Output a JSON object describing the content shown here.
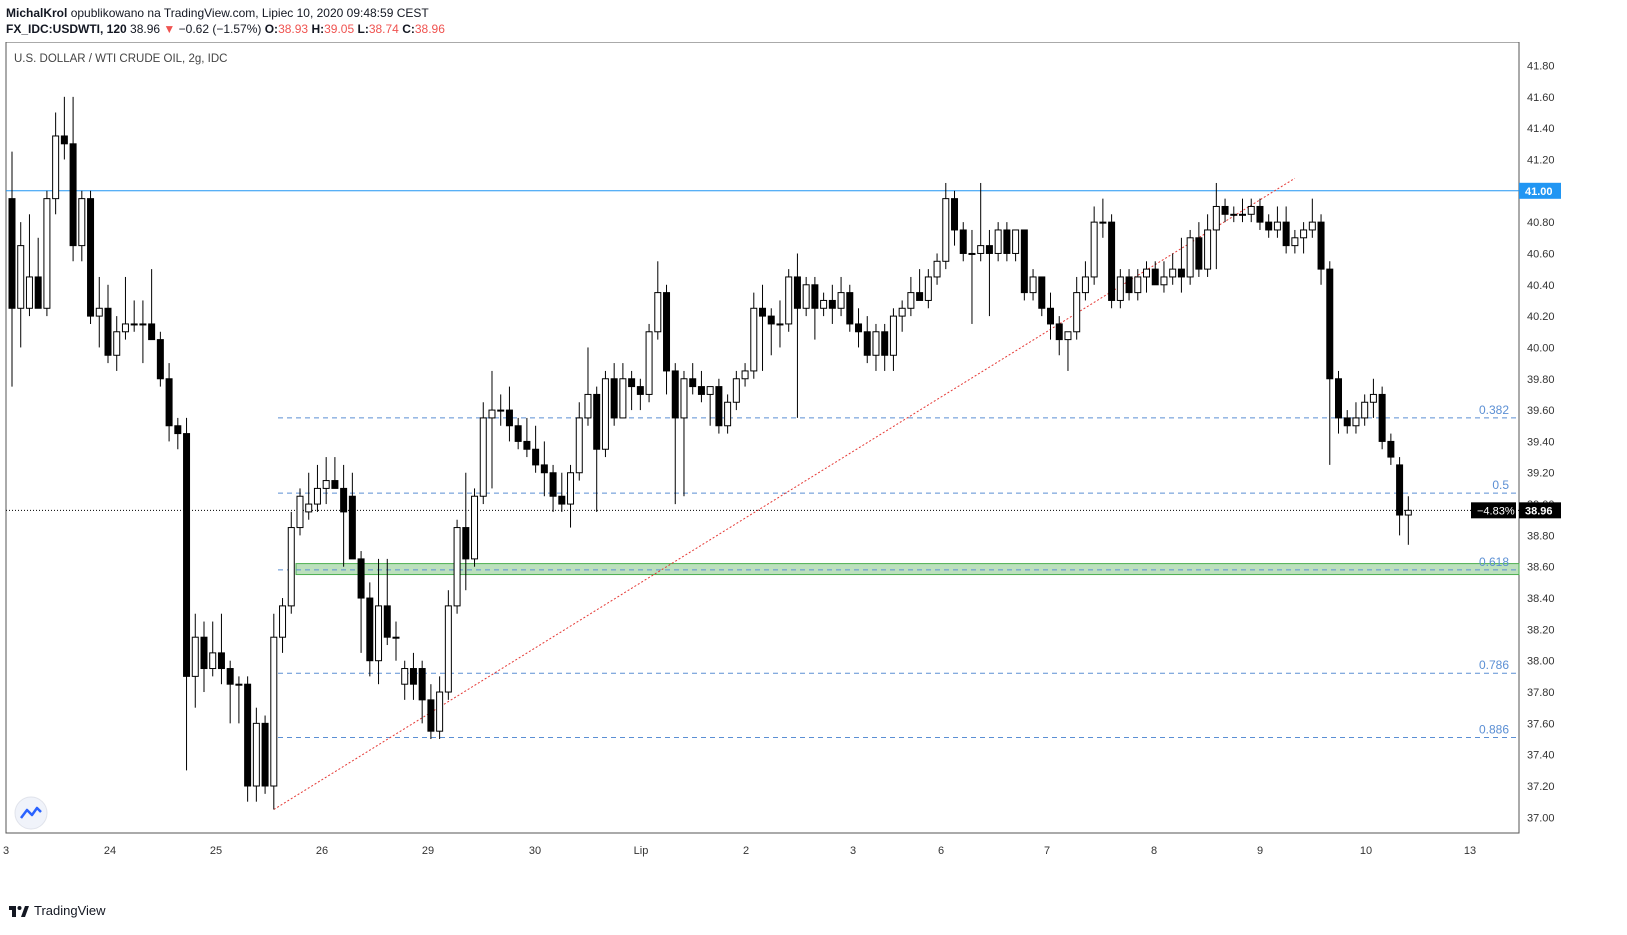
{
  "header": {
    "author": "MichalKrol",
    "published_text": "opublikowano na TradingView.com, Lipiec 10, 2020 09:48:59 CEST",
    "symbol": "FX_IDC:USDWTI, 120",
    "last": "38.96",
    "change_arrow": "▼",
    "change": "−0.62 (−1.57%)",
    "o_label": "O:",
    "o_value": "38.93",
    "h_label": "H:",
    "h_value": "39.05",
    "l_label": "L:",
    "l_value": "38.74",
    "c_label": "C:",
    "c_value": "38.96"
  },
  "chart_title": "U.S. DOLLAR / WTI CRUDE OIL, 2g, IDC",
  "footer": {
    "brand": "TradingView"
  },
  "colors": {
    "up_body": "#ffffff",
    "down_body": "#000000",
    "wick": "#000000",
    "resistance": "#2196f3",
    "fib": "#5b8fd4",
    "trend": "#e53935",
    "zone_fill": "#a5d6a7",
    "zone_border": "#4caf50",
    "price_line": "#000000"
  },
  "chart_data": {
    "type": "candlestick",
    "title": "U.S. DOLLAR / WTI CRUDE OIL, 2g, IDC",
    "ylim": [
      36.9,
      41.95
    ],
    "yticks": [
      "41.80",
      "41.60",
      "41.40",
      "41.20",
      "41.00",
      "40.80",
      "40.60",
      "40.40",
      "40.20",
      "40.00",
      "39.80",
      "39.60",
      "39.40",
      "39.20",
      "39.00",
      "38.80",
      "38.60",
      "38.40",
      "38.20",
      "38.00",
      "37.80",
      "37.60",
      "37.40",
      "37.20",
      "37.00"
    ],
    "xticks": [
      "3",
      "24",
      "25",
      "26",
      "29",
      "30",
      "Lip",
      "2",
      "3",
      "6",
      "7",
      "8",
      "9",
      "10",
      "13"
    ],
    "candles": [
      {
        "o": 40.95,
        "h": 41.25,
        "l": 39.75,
        "c": 40.25
      },
      {
        "o": 40.25,
        "h": 40.8,
        "l": 40.0,
        "c": 40.65
      },
      {
        "o": 40.25,
        "h": 40.85,
        "l": 40.2,
        "c": 40.45
      },
      {
        "o": 40.45,
        "h": 40.7,
        "l": 40.25,
        "c": 40.25
      },
      {
        "o": 40.25,
        "h": 41.0,
        "l": 40.2,
        "c": 40.95
      },
      {
        "o": 40.95,
        "h": 41.5,
        "l": 40.85,
        "c": 41.35
      },
      {
        "o": 41.35,
        "h": 41.6,
        "l": 41.2,
        "c": 41.3
      },
      {
        "o": 41.3,
        "h": 41.6,
        "l": 40.55,
        "c": 40.65
      },
      {
        "o": 40.65,
        "h": 41.0,
        "l": 40.55,
        "c": 40.95
      },
      {
        "o": 40.95,
        "h": 41.0,
        "l": 40.15,
        "c": 40.2
      },
      {
        "o": 40.2,
        "h": 40.45,
        "l": 40.0,
        "c": 40.25
      },
      {
        "o": 40.25,
        "h": 40.4,
        "l": 39.9,
        "c": 39.95
      },
      {
        "o": 39.95,
        "h": 40.2,
        "l": 39.85,
        "c": 40.1
      },
      {
        "o": 40.1,
        "h": 40.45,
        "l": 40.05,
        "c": 40.15
      },
      {
        "o": 40.15,
        "h": 40.3,
        "l": 40.1,
        "c": 40.15
      },
      {
        "o": 40.15,
        "h": 40.3,
        "l": 39.9,
        "c": 40.15
      },
      {
        "o": 40.15,
        "h": 40.5,
        "l": 40.1,
        "c": 40.05
      },
      {
        "o": 40.05,
        "h": 40.1,
        "l": 39.75,
        "c": 39.8
      },
      {
        "o": 39.8,
        "h": 39.9,
        "l": 39.4,
        "c": 39.5
      },
      {
        "o": 39.5,
        "h": 39.55,
        "l": 39.35,
        "c": 39.45
      },
      {
        "o": 39.45,
        "h": 39.55,
        "l": 37.3,
        "c": 37.9
      },
      {
        "o": 37.9,
        "h": 38.3,
        "l": 37.7,
        "c": 38.15
      },
      {
        "o": 38.15,
        "h": 38.25,
        "l": 37.8,
        "c": 37.95
      },
      {
        "o": 37.95,
        "h": 38.25,
        "l": 37.9,
        "c": 38.05
      },
      {
        "o": 38.05,
        "h": 38.3,
        "l": 37.85,
        "c": 37.95
      },
      {
        "o": 37.95,
        "h": 38.0,
        "l": 37.6,
        "c": 37.85
      },
      {
        "o": 37.85,
        "h": 37.9,
        "l": 37.6,
        "c": 37.85
      },
      {
        "o": 37.85,
        "h": 37.9,
        "l": 37.1,
        "c": 37.2
      },
      {
        "o": 37.2,
        "h": 37.7,
        "l": 37.1,
        "c": 37.6
      },
      {
        "o": 37.6,
        "h": 37.65,
        "l": 37.15,
        "c": 37.2
      },
      {
        "o": 37.2,
        "h": 38.3,
        "l": 37.05,
        "c": 38.15
      },
      {
        "o": 38.15,
        "h": 38.4,
        "l": 38.05,
        "c": 38.35
      },
      {
        "o": 38.35,
        "h": 38.95,
        "l": 38.3,
        "c": 38.85
      },
      {
        "o": 38.85,
        "h": 39.1,
        "l": 38.8,
        "c": 39.05
      },
      {
        "o": 38.95,
        "h": 39.2,
        "l": 38.9,
        "c": 39.0
      },
      {
        "o": 39.0,
        "h": 39.25,
        "l": 38.95,
        "c": 39.1
      },
      {
        "o": 39.1,
        "h": 39.3,
        "l": 39.0,
        "c": 39.15
      },
      {
        "o": 39.15,
        "h": 39.3,
        "l": 39.1,
        "c": 39.1
      },
      {
        "o": 39.1,
        "h": 39.25,
        "l": 38.6,
        "c": 38.95
      },
      {
        "o": 39.05,
        "h": 39.2,
        "l": 38.7,
        "c": 38.65
      },
      {
        "o": 38.65,
        "h": 38.7,
        "l": 38.05,
        "c": 38.4
      },
      {
        "o": 38.4,
        "h": 38.5,
        "l": 37.9,
        "c": 38.0
      },
      {
        "o": 38.0,
        "h": 38.65,
        "l": 37.85,
        "c": 38.35
      },
      {
        "o": 38.35,
        "h": 38.65,
        "l": 38.1,
        "c": 38.15
      },
      {
        "o": 38.15,
        "h": 38.25,
        "l": 38.0,
        "c": 38.15
      },
      {
        "o": 37.85,
        "h": 38.0,
        "l": 37.75,
        "c": 37.95
      },
      {
        "o": 37.95,
        "h": 38.05,
        "l": 37.75,
        "c": 37.85
      },
      {
        "o": 37.95,
        "h": 38.0,
        "l": 37.6,
        "c": 37.75
      },
      {
        "o": 37.75,
        "h": 37.85,
        "l": 37.5,
        "c": 37.55
      },
      {
        "o": 37.55,
        "h": 37.9,
        "l": 37.5,
        "c": 37.8
      },
      {
        "o": 37.8,
        "h": 38.45,
        "l": 37.75,
        "c": 38.35
      },
      {
        "o": 38.35,
        "h": 38.9,
        "l": 38.3,
        "c": 38.85
      },
      {
        "o": 38.85,
        "h": 39.2,
        "l": 38.45,
        "c": 38.65
      },
      {
        "o": 38.65,
        "h": 39.1,
        "l": 38.6,
        "c": 39.05
      },
      {
        "o": 39.05,
        "h": 39.65,
        "l": 39.0,
        "c": 39.55
      },
      {
        "o": 39.55,
        "h": 39.85,
        "l": 39.1,
        "c": 39.6
      },
      {
        "o": 39.6,
        "h": 39.7,
        "l": 39.5,
        "c": 39.6
      },
      {
        "o": 39.6,
        "h": 39.75,
        "l": 39.4,
        "c": 39.5
      },
      {
        "o": 39.5,
        "h": 39.55,
        "l": 39.35,
        "c": 39.4
      },
      {
        "o": 39.4,
        "h": 39.55,
        "l": 39.3,
        "c": 39.35
      },
      {
        "o": 39.35,
        "h": 39.5,
        "l": 39.2,
        "c": 39.25
      },
      {
        "o": 39.25,
        "h": 39.4,
        "l": 39.05,
        "c": 39.2
      },
      {
        "o": 39.2,
        "h": 39.25,
        "l": 38.95,
        "c": 39.05
      },
      {
        "o": 39.05,
        "h": 39.2,
        "l": 38.95,
        "c": 39.0
      },
      {
        "o": 39.0,
        "h": 39.25,
        "l": 38.85,
        "c": 39.2
      },
      {
        "o": 39.2,
        "h": 39.65,
        "l": 39.15,
        "c": 39.55
      },
      {
        "o": 39.55,
        "h": 40.0,
        "l": 39.5,
        "c": 39.7
      },
      {
        "o": 39.7,
        "h": 39.75,
        "l": 38.95,
        "c": 39.35
      },
      {
        "o": 39.35,
        "h": 39.85,
        "l": 39.3,
        "c": 39.8
      },
      {
        "o": 39.8,
        "h": 39.9,
        "l": 39.5,
        "c": 39.55
      },
      {
        "o": 39.55,
        "h": 39.9,
        "l": 39.6,
        "c": 39.8
      },
      {
        "o": 39.8,
        "h": 39.85,
        "l": 39.6,
        "c": 39.75
      },
      {
        "o": 39.75,
        "h": 39.8,
        "l": 39.6,
        "c": 39.7
      },
      {
        "o": 39.7,
        "h": 40.15,
        "l": 39.65,
        "c": 40.1
      },
      {
        "o": 40.1,
        "h": 40.55,
        "l": 40.05,
        "c": 40.35
      },
      {
        "o": 40.35,
        "h": 40.4,
        "l": 39.7,
        "c": 39.85
      },
      {
        "o": 39.85,
        "h": 39.9,
        "l": 39.0,
        "c": 39.55
      },
      {
        "o": 39.55,
        "h": 39.85,
        "l": 39.05,
        "c": 39.8
      },
      {
        "o": 39.8,
        "h": 39.9,
        "l": 39.7,
        "c": 39.75
      },
      {
        "o": 39.75,
        "h": 39.85,
        "l": 39.65,
        "c": 39.7
      },
      {
        "o": 39.7,
        "h": 39.75,
        "l": 39.5,
        "c": 39.75
      },
      {
        "o": 39.75,
        "h": 39.8,
        "l": 39.45,
        "c": 39.5
      },
      {
        "o": 39.5,
        "h": 39.7,
        "l": 39.45,
        "c": 39.65
      },
      {
        "o": 39.65,
        "h": 39.85,
        "l": 39.6,
        "c": 39.8
      },
      {
        "o": 39.8,
        "h": 39.9,
        "l": 39.75,
        "c": 39.85
      },
      {
        "o": 39.85,
        "h": 40.35,
        "l": 39.8,
        "c": 40.25
      },
      {
        "o": 40.25,
        "h": 40.4,
        "l": 39.85,
        "c": 40.2
      },
      {
        "o": 40.2,
        "h": 40.25,
        "l": 39.95,
        "c": 40.15
      },
      {
        "o": 40.15,
        "h": 40.3,
        "l": 40.0,
        "c": 40.15
      },
      {
        "o": 40.15,
        "h": 40.5,
        "l": 40.1,
        "c": 40.45
      },
      {
        "o": 40.45,
        "h": 40.6,
        "l": 39.55,
        "c": 40.25
      },
      {
        "o": 40.25,
        "h": 40.45,
        "l": 40.2,
        "c": 40.4
      },
      {
        "o": 40.4,
        "h": 40.45,
        "l": 40.05,
        "c": 40.25
      },
      {
        "o": 40.25,
        "h": 40.35,
        "l": 40.2,
        "c": 40.3
      },
      {
        "o": 40.3,
        "h": 40.4,
        "l": 40.15,
        "c": 40.25
      },
      {
        "o": 40.25,
        "h": 40.45,
        "l": 40.2,
        "c": 40.35
      },
      {
        "o": 40.35,
        "h": 40.4,
        "l": 40.1,
        "c": 40.15
      },
      {
        "o": 40.15,
        "h": 40.25,
        "l": 40.0,
        "c": 40.1
      },
      {
        "o": 40.1,
        "h": 40.2,
        "l": 39.9,
        "c": 39.95
      },
      {
        "o": 39.95,
        "h": 40.15,
        "l": 39.85,
        "c": 40.1
      },
      {
        "o": 40.1,
        "h": 40.15,
        "l": 39.85,
        "c": 39.95
      },
      {
        "o": 39.95,
        "h": 40.25,
        "l": 39.85,
        "c": 40.2
      },
      {
        "o": 40.2,
        "h": 40.3,
        "l": 40.1,
        "c": 40.25
      },
      {
        "o": 40.25,
        "h": 40.45,
        "l": 40.2,
        "c": 40.35
      },
      {
        "o": 40.35,
        "h": 40.5,
        "l": 40.3,
        "c": 40.3
      },
      {
        "o": 40.3,
        "h": 40.5,
        "l": 40.25,
        "c": 40.45
      },
      {
        "o": 40.45,
        "h": 40.6,
        "l": 40.4,
        "c": 40.55
      },
      {
        "o": 40.55,
        "h": 41.05,
        "l": 40.5,
        "c": 40.95
      },
      {
        "o": 40.95,
        "h": 41.0,
        "l": 40.65,
        "c": 40.75
      },
      {
        "o": 40.75,
        "h": 40.8,
        "l": 40.55,
        "c": 40.6
      },
      {
        "o": 40.6,
        "h": 40.75,
        "l": 40.15,
        "c": 40.6
      },
      {
        "o": 40.6,
        "h": 41.05,
        "l": 40.55,
        "c": 40.65
      },
      {
        "o": 40.65,
        "h": 40.75,
        "l": 40.2,
        "c": 40.6
      },
      {
        "o": 40.6,
        "h": 40.8,
        "l": 40.55,
        "c": 40.75
      },
      {
        "o": 40.75,
        "h": 40.8,
        "l": 40.55,
        "c": 40.6
      },
      {
        "o": 40.6,
        "h": 40.75,
        "l": 40.55,
        "c": 40.75
      },
      {
        "o": 40.75,
        "h": 40.75,
        "l": 40.3,
        "c": 40.35
      },
      {
        "o": 40.35,
        "h": 40.5,
        "l": 40.3,
        "c": 40.45
      },
      {
        "o": 40.45,
        "h": 40.45,
        "l": 40.2,
        "c": 40.25
      },
      {
        "o": 40.25,
        "h": 40.35,
        "l": 40.05,
        "c": 40.15
      },
      {
        "o": 40.15,
        "h": 40.2,
        "l": 39.95,
        "c": 40.05
      },
      {
        "o": 40.05,
        "h": 40.05,
        "l": 39.85,
        "c": 40.1
      },
      {
        "o": 40.1,
        "h": 40.45,
        "l": 40.05,
        "c": 40.35
      },
      {
        "o": 40.35,
        "h": 40.55,
        "l": 40.3,
        "c": 40.45
      },
      {
        "o": 40.45,
        "h": 40.9,
        "l": 40.4,
        "c": 40.8
      },
      {
        "o": 40.8,
        "h": 40.95,
        "l": 40.7,
        "c": 40.8
      },
      {
        "o": 40.8,
        "h": 40.85,
        "l": 40.25,
        "c": 40.3
      },
      {
        "o": 40.3,
        "h": 40.5,
        "l": 40.25,
        "c": 40.45
      },
      {
        "o": 40.45,
        "h": 40.5,
        "l": 40.3,
        "c": 40.35
      },
      {
        "o": 40.35,
        "h": 40.5,
        "l": 40.3,
        "c": 40.45
      },
      {
        "o": 40.45,
        "h": 40.55,
        "l": 40.35,
        "c": 40.5
      },
      {
        "o": 40.5,
        "h": 40.55,
        "l": 40.4,
        "c": 40.4
      },
      {
        "o": 40.4,
        "h": 40.55,
        "l": 40.35,
        "c": 40.45
      },
      {
        "o": 40.45,
        "h": 40.6,
        "l": 40.4,
        "c": 40.5
      },
      {
        "o": 40.5,
        "h": 40.7,
        "l": 40.35,
        "c": 40.45
      },
      {
        "o": 40.45,
        "h": 40.75,
        "l": 40.4,
        "c": 40.7
      },
      {
        "o": 40.7,
        "h": 40.8,
        "l": 40.45,
        "c": 40.5
      },
      {
        "o": 40.5,
        "h": 40.85,
        "l": 40.45,
        "c": 40.75
      },
      {
        "o": 40.75,
        "h": 41.05,
        "l": 40.5,
        "c": 40.9
      },
      {
        "o": 40.9,
        "h": 40.95,
        "l": 40.8,
        "c": 40.85
      },
      {
        "o": 40.85,
        "h": 40.9,
        "l": 40.8,
        "c": 40.85
      },
      {
        "o": 40.85,
        "h": 40.95,
        "l": 40.8,
        "c": 40.85
      },
      {
        "o": 40.85,
        "h": 40.95,
        "l": 40.8,
        "c": 40.9
      },
      {
        "o": 40.9,
        "h": 40.95,
        "l": 40.75,
        "c": 40.8
      },
      {
        "o": 40.8,
        "h": 40.85,
        "l": 40.7,
        "c": 40.75
      },
      {
        "o": 40.75,
        "h": 40.9,
        "l": 40.7,
        "c": 40.8
      },
      {
        "o": 40.8,
        "h": 40.9,
        "l": 40.6,
        "c": 40.65
      },
      {
        "o": 40.65,
        "h": 40.75,
        "l": 40.6,
        "c": 40.7
      },
      {
        "o": 40.7,
        "h": 40.8,
        "l": 40.6,
        "c": 40.75
      },
      {
        "o": 40.75,
        "h": 40.95,
        "l": 40.7,
        "c": 40.8
      },
      {
        "o": 40.8,
        "h": 40.85,
        "l": 40.4,
        "c": 40.5
      },
      {
        "o": 40.5,
        "h": 40.55,
        "l": 39.25,
        "c": 39.8
      },
      {
        "o": 39.8,
        "h": 39.85,
        "l": 39.45,
        "c": 39.55
      },
      {
        "o": 39.55,
        "h": 39.6,
        "l": 39.45,
        "c": 39.5
      },
      {
        "o": 39.5,
        "h": 39.65,
        "l": 39.45,
        "c": 39.55
      },
      {
        "o": 39.55,
        "h": 39.7,
        "l": 39.5,
        "c": 39.65
      },
      {
        "o": 39.65,
        "h": 39.8,
        "l": 39.55,
        "c": 39.7
      },
      {
        "o": 39.7,
        "h": 39.75,
        "l": 39.35,
        "c": 39.4
      },
      {
        "o": 39.4,
        "h": 39.45,
        "l": 39.25,
        "c": 39.3
      },
      {
        "o": 39.25,
        "h": 39.3,
        "l": 38.8,
        "c": 38.93
      },
      {
        "o": 38.93,
        "h": 39.05,
        "l": 38.74,
        "c": 38.96
      }
    ],
    "lines": {
      "resistance": {
        "y": 41.0,
        "label": "41.00"
      },
      "current_price": {
        "y": 38.96,
        "label": "38.96",
        "pct_label": "−4.83%"
      },
      "fib_levels": [
        {
          "ratio": "0.382",
          "y": 39.55
        },
        {
          "ratio": "0.5",
          "y": 39.07
        },
        {
          "ratio": "0.618",
          "y": 38.58
        },
        {
          "ratio": "0.786",
          "y": 37.92
        },
        {
          "ratio": "0.886",
          "y": 37.51
        }
      ],
      "support_zone": {
        "y_low": 38.55,
        "y_high": 38.62
      },
      "trendline": {
        "from_candle": 30,
        "from_y": 37.05,
        "to_candle": 147,
        "to_y": 41.08
      }
    }
  }
}
